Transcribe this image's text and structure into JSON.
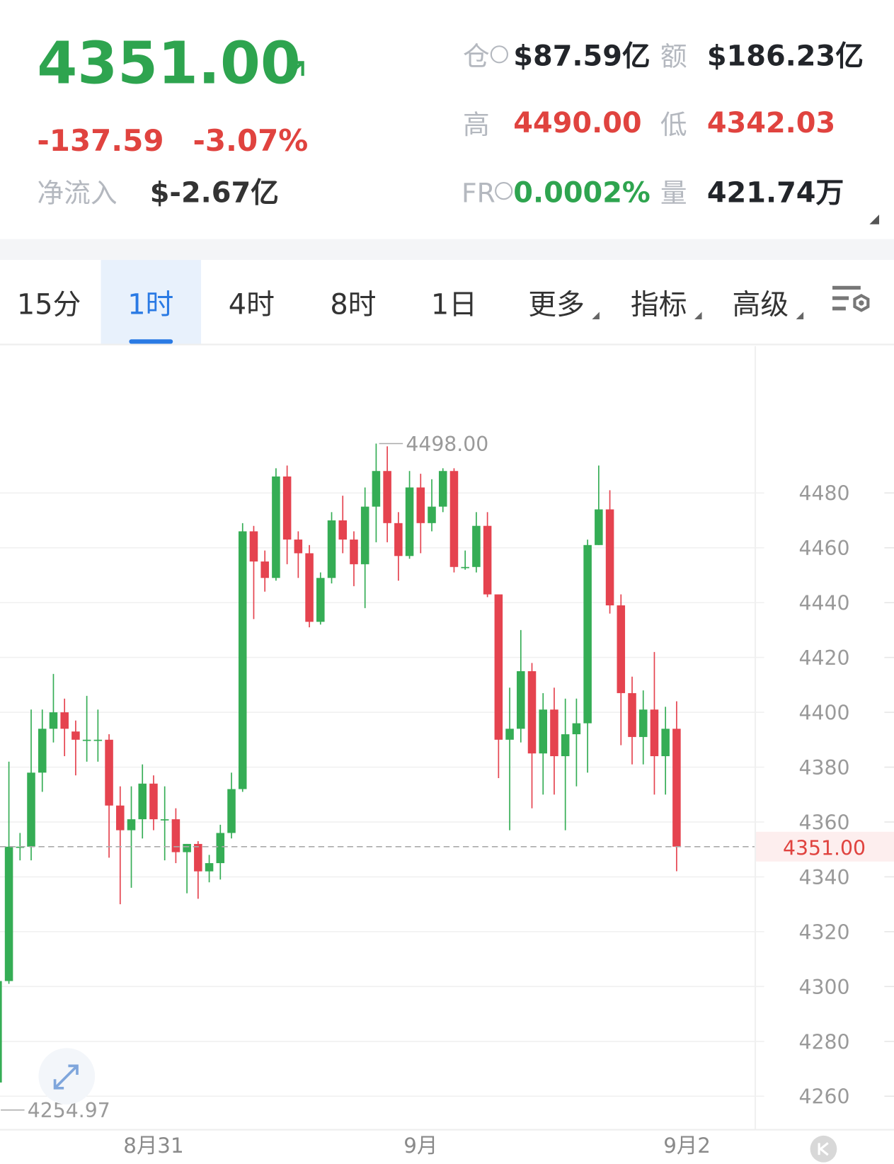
{
  "header": {
    "price": "4351.00",
    "change": "-137.59",
    "change_pct": "-3.07%",
    "net_inflow": {
      "label": "净流入",
      "value": "$-2.67亿"
    },
    "stats": [
      {
        "label": "仓",
        "value": "$87.59亿"
      },
      {
        "label": "额",
        "value": "$186.23亿"
      },
      {
        "label": "高",
        "value": "4490.00"
      },
      {
        "label": "低",
        "value": "4342.03"
      },
      {
        "label": "FR",
        "value": "0.0002%"
      },
      {
        "label": "量",
        "value": "421.74万"
      }
    ]
  },
  "tabs": [
    "15分",
    "1时",
    "4时",
    "8时",
    "1日",
    "更多",
    "指标",
    "高级"
  ],
  "chart_data": {
    "type": "candlestick",
    "up_color": "#35ad55",
    "down_color": "#e5434f",
    "grid": true,
    "ylim": [
      4250,
      4530
    ],
    "yticks": [
      4260,
      4280,
      4300,
      4320,
      4340,
      4360,
      4380,
      4400,
      4420,
      4440,
      4460,
      4480
    ],
    "categories": [
      null,
      null,
      null,
      null,
      null,
      null,
      null,
      null,
      null,
      null,
      null,
      null,
      null,
      null,
      "8月31",
      null,
      null,
      null,
      null,
      null,
      null,
      null,
      null,
      null,
      null,
      null,
      null,
      null,
      null,
      null,
      null,
      null,
      null,
      null,
      null,
      null,
      null,
      null,
      "9月",
      null,
      null,
      null,
      null,
      null,
      null,
      null,
      null,
      null,
      null,
      null,
      null,
      null,
      null,
      null,
      null,
      null,
      null,
      null,
      null,
      null,
      null,
      "9月2"
    ],
    "open": [
      4265,
      4302,
      4351,
      4351,
      4378,
      4394,
      4400,
      4393,
      4390,
      4390,
      4390,
      4366,
      4357,
      4361,
      4374,
      4361,
      4361,
      4349,
      4352,
      4342,
      4345,
      4356,
      4372,
      4466,
      4455,
      4449,
      4486,
      4463,
      4458,
      4433,
      4449,
      4470,
      4463,
      4454,
      4475,
      4488,
      4469,
      4457,
      4482,
      4469,
      4475,
      4488,
      4453,
      4453,
      4468,
      4443,
      4390,
      4394,
      4415,
      4385,
      4401,
      4384,
      4392,
      4396,
      4461,
      4474,
      4439,
      4407,
      4391,
      4401,
      4384,
      4394
    ],
    "high": [
      4302,
      4382,
      4356,
      4401,
      4401,
      4414,
      4405,
      4397,
      4406,
      4401,
      4392,
      4373,
      4373,
      4381,
      4377,
      4373,
      4365,
      4352,
      4353,
      4348,
      4359,
      4378,
      4469,
      4468,
      4459,
      4489,
      4490,
      4466,
      4461,
      4451,
      4473,
      4479,
      4466,
      4482,
      4498,
      4497,
      4473,
      4488,
      4487,
      4485,
      4489,
      4489,
      4459,
      4473,
      4473,
      4443,
      4409,
      4430,
      4418,
      4407,
      4409,
      4405,
      4405,
      4463,
      4490,
      4481,
      4443,
      4413,
      4408,
      4422,
      4402,
      4404
    ],
    "low": [
      4254.97,
      4301,
      4346,
      4346,
      4371,
      4389,
      4384,
      4377,
      4382,
      4382,
      4347,
      4330,
      4336,
      4354,
      4357,
      4346,
      4345,
      4334,
      4332,
      4338,
      4339,
      4354,
      4371,
      4434,
      4444,
      4448,
      4454,
      4449,
      4431,
      4432,
      4447,
      4458,
      4446,
      4438,
      4462,
      4462,
      4448,
      4456,
      4458,
      4466,
      4473,
      4451,
      4452,
      4451,
      4442,
      4376,
      4357,
      4389,
      4365,
      4370,
      4370,
      4357,
      4373,
      4378,
      4461,
      4436,
      4388,
      4381,
      4381,
      4370,
      4370,
      4342.03
    ],
    "close": [
      4302,
      4351,
      4351,
      4378,
      4394,
      4400,
      4394,
      4390,
      4390,
      4390,
      4366,
      4357,
      4361,
      4374,
      4361,
      4361,
      4349,
      4352,
      4342,
      4345,
      4356,
      4372,
      4466,
      4455,
      4449,
      4486,
      4463,
      4458,
      4433,
      4449,
      4470,
      4463,
      4454,
      4475,
      4488,
      4469,
      4457,
      4482,
      4469,
      4475,
      4488,
      4453,
      4453,
      4468,
      4443,
      4390,
      4394,
      4415,
      4385,
      4401,
      4384,
      4392,
      4396,
      4461,
      4474,
      4439,
      4407,
      4391,
      4401,
      4384,
      4394,
      4351
    ],
    "high_marker": {
      "index": 34,
      "value": 4498,
      "label": "4498.00"
    },
    "low_marker": {
      "index": 0,
      "value": 4254.97,
      "label": "4254.97"
    },
    "last_price": {
      "value": 4351,
      "label": "4351.00"
    }
  }
}
